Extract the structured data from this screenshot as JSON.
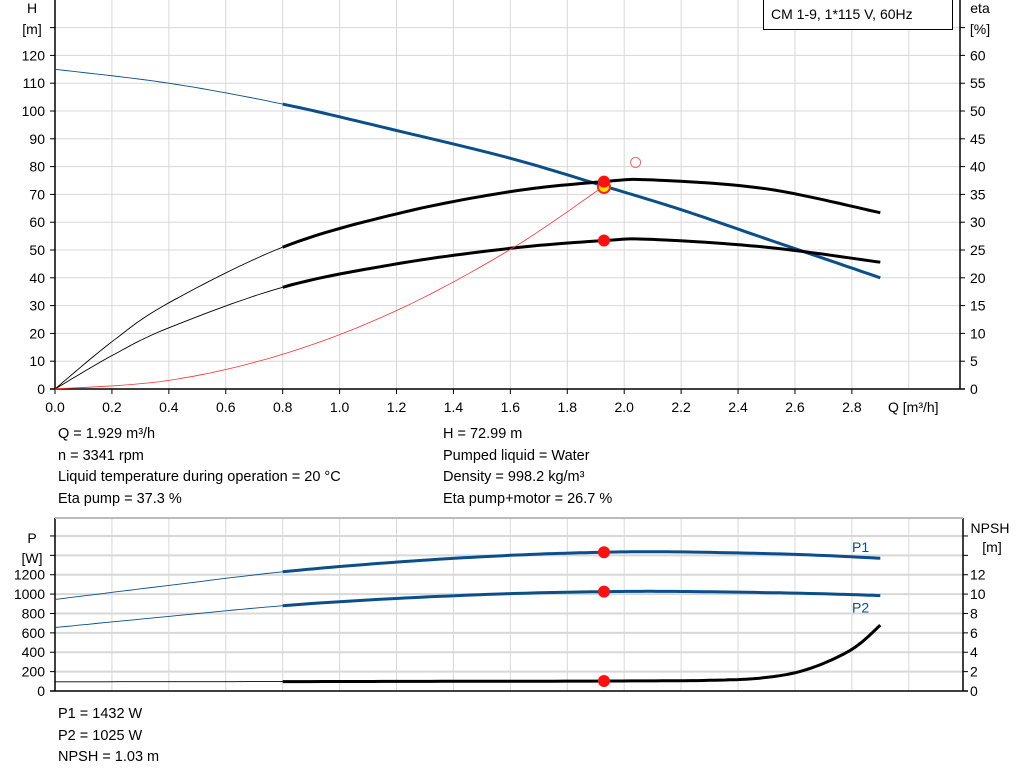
{
  "chart_data": [
    {
      "type": "line",
      "legend": "CM 1-9, 1*115 V, 60Hz",
      "legend_position": "top-right",
      "grid": true,
      "xlabel": "Q [m³/h]",
      "xlim": [
        0,
        3.1
      ],
      "xticks": [
        0,
        0.2,
        0.4,
        0.6,
        0.8,
        1.0,
        1.2,
        1.4,
        1.6,
        1.8,
        2.0,
        2.2,
        2.4,
        2.6,
        2.8
      ],
      "ylabel": "H",
      "yunit": "[m]",
      "ylim": [
        0,
        125
      ],
      "yticks": [
        0,
        10,
        20,
        30,
        40,
        50,
        60,
        70,
        80,
        90,
        100,
        110,
        120
      ],
      "y2label": "eta",
      "y2unit": "[%]",
      "y2lim": [
        0,
        62.5
      ],
      "y2ticks": [
        0,
        5,
        10,
        15,
        20,
        25,
        30,
        35,
        40,
        45,
        50,
        55,
        60
      ],
      "series": [
        {
          "id": "H",
          "axis": "left",
          "color": "#0b4f8a",
          "thin_until": 0.8,
          "x": [
            0,
            0.4,
            0.8,
            1.2,
            1.6,
            1.929,
            2.2,
            2.5,
            2.9
          ],
          "y": [
            115,
            110,
            102.5,
            93,
            83,
            73,
            64.5,
            54,
            40
          ]
        },
        {
          "id": "eta_pump",
          "axis": "right",
          "color": "#000000",
          "thin_until": 0.8,
          "x": [
            0,
            0.2,
            0.4,
            0.8,
            1.2,
            1.6,
            1.929,
            2.1,
            2.5,
            2.9
          ],
          "y": [
            0,
            8.5,
            15.5,
            25.5,
            31.5,
            35.5,
            37.3,
            37.6,
            36,
            31.7
          ]
        },
        {
          "id": "eta_pump_motor",
          "axis": "right",
          "color": "#000000",
          "thin_until": 0.8,
          "x": [
            0,
            0.2,
            0.4,
            0.8,
            1.2,
            1.6,
            1.929,
            2.1,
            2.5,
            2.9
          ],
          "y": [
            0,
            6,
            11,
            18.3,
            22.5,
            25.3,
            26.7,
            26.9,
            25.5,
            22.8
          ]
        },
        {
          "id": "system",
          "axis": "left",
          "color": "#ff3030",
          "thin_until": 9,
          "x": [
            0,
            0.4,
            0.8,
            1.2,
            1.6,
            1.929
          ],
          "y": [
            0,
            3.1,
            12.5,
            28.2,
            50.2,
            73
          ]
        }
      ],
      "duty_points": [
        {
          "x": 1.929,
          "y": 73,
          "axis": "left"
        },
        {
          "x": 1.929,
          "y": 37.3,
          "axis": "right"
        },
        {
          "x": 1.929,
          "y": 26.7,
          "axis": "right"
        }
      ],
      "open_marker": {
        "x": 2.04,
        "y": 81.5
      }
    },
    {
      "type": "line",
      "grid": true,
      "xlim": [
        0,
        3.1
      ],
      "ylabel": "P",
      "yunit": "[W]",
      "ylim": [
        0,
        1800
      ],
      "yticks": [
        0,
        200,
        400,
        600,
        800,
        1000,
        1200
      ],
      "y2label": "NPSH",
      "y2unit": "[m]",
      "y2lim": [
        0,
        18
      ],
      "y2ticks": [
        0,
        2,
        4,
        6,
        8,
        10,
        12
      ],
      "series": [
        {
          "name": "P1",
          "axis": "left",
          "color": "#0b4f8a",
          "thin_until": 0.8,
          "x": [
            0,
            0.4,
            0.8,
            1.2,
            1.6,
            1.929,
            2.2,
            2.6,
            2.9
          ],
          "y": [
            945,
            1090,
            1230,
            1330,
            1400,
            1432,
            1435,
            1410,
            1370
          ]
        },
        {
          "name": "P2",
          "axis": "left",
          "color": "#0b4f8a",
          "thin_until": 0.8,
          "x": [
            0,
            0.4,
            0.8,
            1.2,
            1.6,
            1.929,
            2.2,
            2.6,
            2.9
          ],
          "y": [
            655,
            770,
            880,
            955,
            1005,
            1025,
            1027,
            1010,
            985
          ]
        },
        {
          "id": "NPSH",
          "axis": "right",
          "color": "#000000",
          "thin_until": 0.8,
          "x": [
            0,
            0.8,
            1.4,
            1.929,
            2.3,
            2.5,
            2.65,
            2.8,
            2.9
          ],
          "y": [
            0.95,
            0.97,
            1.0,
            1.03,
            1.1,
            1.4,
            2.3,
            4.3,
            6.8
          ]
        }
      ],
      "duty_points": [
        {
          "x": 1.929,
          "y": 1432,
          "axis": "left"
        },
        {
          "x": 1.929,
          "y": 1025,
          "axis": "left"
        },
        {
          "x": 1.929,
          "y": 1.03,
          "axis": "right"
        }
      ]
    }
  ],
  "info_top_left": [
    "Q = 1.929 m³/h",
    "n = 3341 rpm",
    "Liquid temperature during operation = 20 °C",
    "Eta pump = 37.3 %"
  ],
  "info_top_right": [
    "H = 72.99 m",
    "Pumped liquid = Water",
    "Density = 998.2 kg/m³",
    "Eta pump+motor = 26.7 %"
  ],
  "info_bottom": [
    "P1 = 1432 W",
    "P2 = 1025 W",
    "NPSH = 1.03 m"
  ]
}
